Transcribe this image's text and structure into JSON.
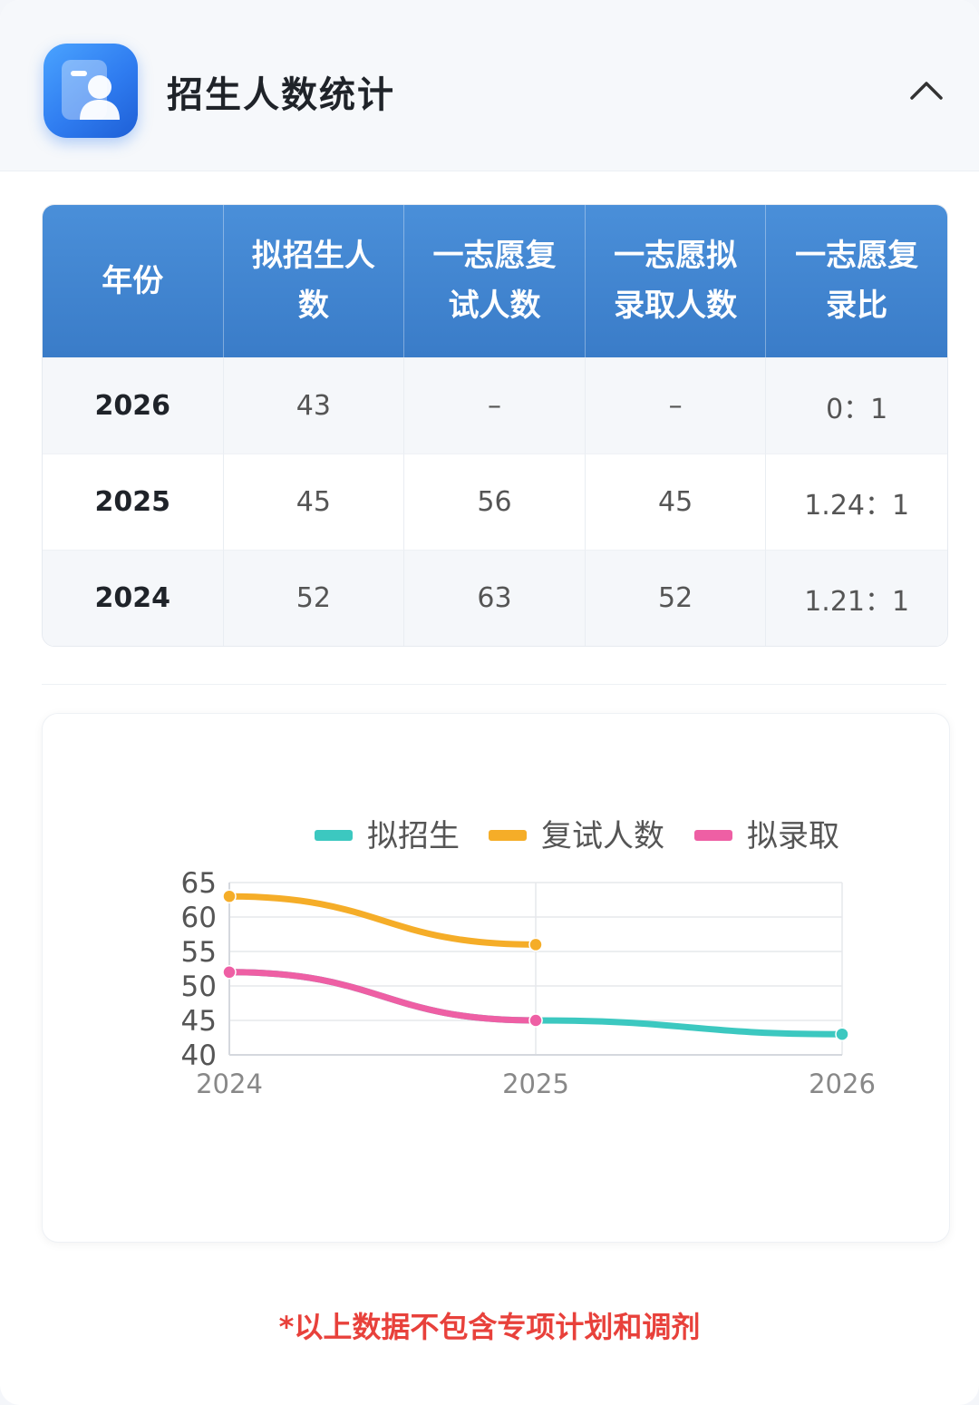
{
  "header": {
    "title": "招生人数统计",
    "icon": "profile-card-icon",
    "collapse_icon": "chevron-up-icon"
  },
  "table": {
    "headers": [
      "年份",
      "拟招生人数",
      "一志愿复试人数",
      "一志愿拟录取人数",
      "一志愿复录比"
    ],
    "rows": [
      [
        "2026",
        "43",
        "–",
        "–",
        "0：1"
      ],
      [
        "2025",
        "45",
        "56",
        "45",
        "1.24：1"
      ],
      [
        "2024",
        "52",
        "63",
        "52",
        "1.21：1"
      ]
    ]
  },
  "chart_data": {
    "type": "line",
    "x": [
      "2024",
      "2025",
      "2026"
    ],
    "series": [
      {
        "name": "拟招生",
        "values": [
          52,
          45,
          43
        ],
        "color": "#3cc8c0"
      },
      {
        "name": "复试人数",
        "values": [
          63,
          56,
          null
        ],
        "color": "#f5ad28"
      },
      {
        "name": "拟录取",
        "values": [
          52,
          45,
          null
        ],
        "color": "#ee5fa4"
      }
    ],
    "y_ticks": [
      "40",
      "45",
      "50",
      "55",
      "60",
      "65"
    ],
    "ylim": [
      40,
      65
    ],
    "grid": true,
    "legend": "top"
  },
  "note": "*以上数据不包含专项计划和调剂"
}
